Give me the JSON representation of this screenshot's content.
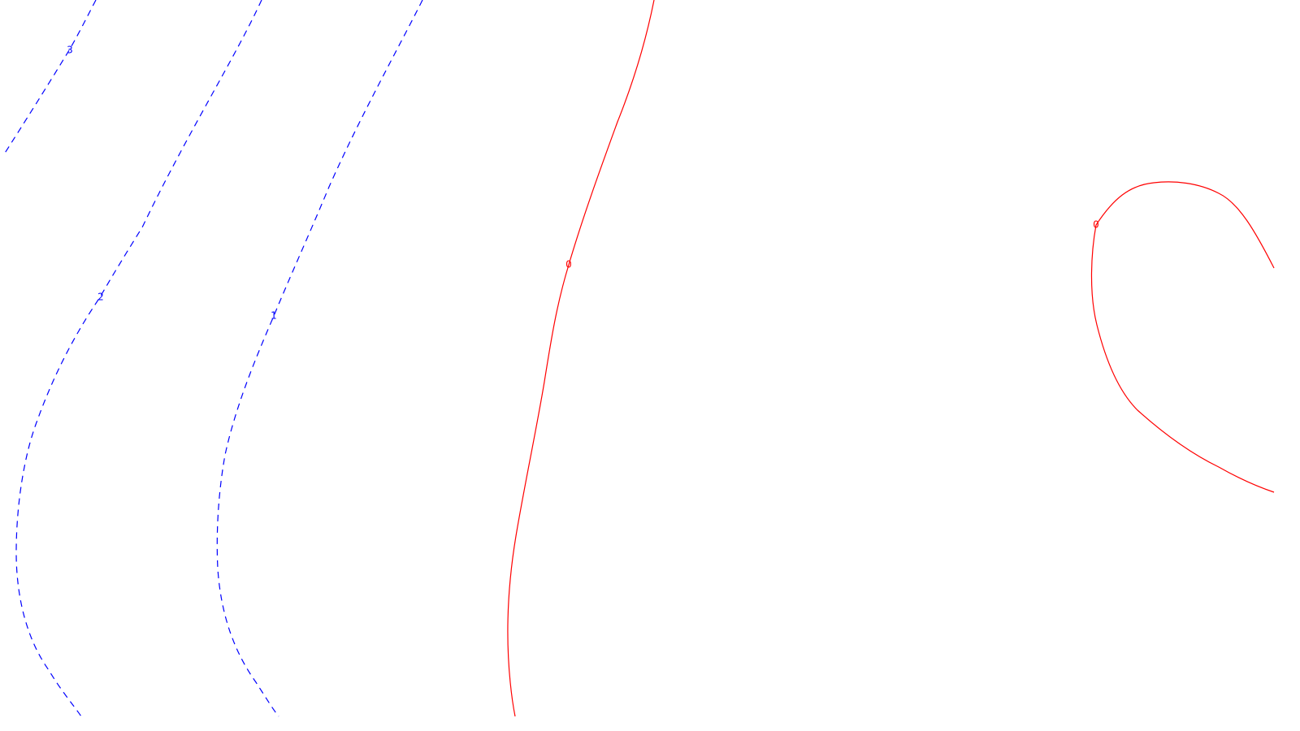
{
  "contours": {
    "negative_color": "#0000ff",
    "zero_color": "#ff0000",
    "lines": [
      {
        "id": "contour-3",
        "level": "3",
        "style": "dashed",
        "color": "#0000ff"
      },
      {
        "id": "contour-2",
        "level": "2",
        "style": "dashed",
        "color": "#0000ff"
      },
      {
        "id": "contour-1",
        "level": "1",
        "style": "dashed",
        "color": "#0000ff"
      },
      {
        "id": "contour-0-main",
        "level": "0",
        "style": "solid",
        "color": "#ff0000"
      },
      {
        "id": "contour-0-loop",
        "level": "0",
        "style": "solid",
        "color": "#ff0000"
      }
    ]
  }
}
